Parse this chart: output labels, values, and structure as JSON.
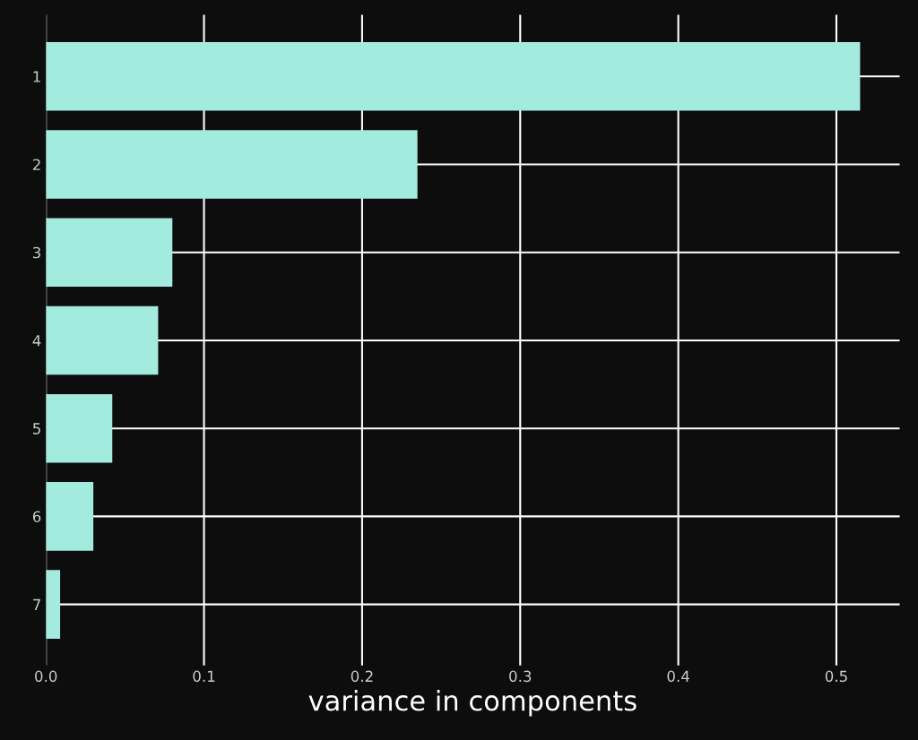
{
  "chart_data": {
    "type": "bar",
    "orientation": "horizontal",
    "xlabel": "variance in components",
    "categories": [
      "1",
      "2",
      "3",
      "4",
      "5",
      "6",
      "7"
    ],
    "values": [
      0.515,
      0.235,
      0.08,
      0.071,
      0.042,
      0.03,
      0.009
    ],
    "color": "#a3eadf",
    "xlim": [
      0,
      0.54
    ],
    "xticks": [
      {
        "value": 0,
        "label": "0.0"
      },
      0.1,
      0.2,
      0.3,
      0.4,
      0.5
    ],
    "grid": true
  }
}
